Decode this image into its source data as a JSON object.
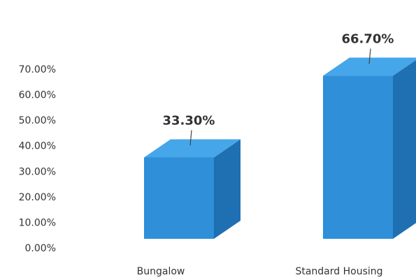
{
  "chart_data": {
    "type": "bar",
    "style": "3d",
    "categories": [
      "Bungalow",
      "Standard Housing"
    ],
    "values": [
      33.3,
      66.7
    ],
    "data_labels": [
      "33.30%",
      "66.70%"
    ],
    "y_ticks": [
      "0.00%",
      "10.00%",
      "20.00%",
      "30.00%",
      "40.00%",
      "50.00%",
      "60.00%",
      "70.00%"
    ],
    "ylim": [
      0,
      70
    ],
    "grid": false,
    "legend": "none",
    "colors": {
      "front": "#2f8fd8",
      "top": "#45a6ea",
      "side": "#1f6fb3"
    }
  }
}
